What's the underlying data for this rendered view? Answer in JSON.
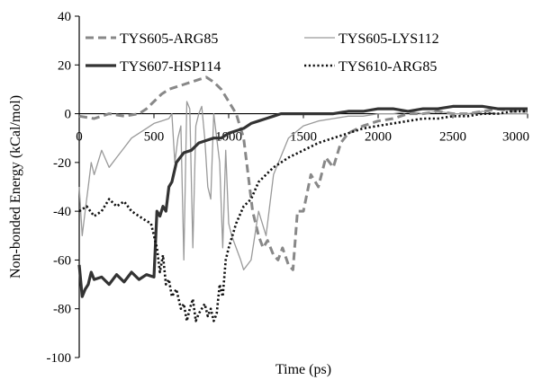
{
  "chart_data": {
    "type": "line",
    "xlabel": "Time (ps)",
    "ylabel": "Non-bonded Energy (kCal/mol)",
    "xlim": [
      0,
      3000
    ],
    "ylim": [
      -100,
      40
    ],
    "xticks": [
      "0",
      "500",
      "1000",
      "1500",
      "2000",
      "2500",
      "3000"
    ],
    "yticks": [
      "40",
      "20",
      "0",
      "-20",
      "-40",
      "-60",
      "-80",
      "-100"
    ],
    "grid": false,
    "legend_placement": "top",
    "series": [
      {
        "name": "TYS605-ARG85",
        "color": "#888888",
        "style": "dashed",
        "x": [
          0,
          100,
          200,
          300,
          400,
          450,
          500,
          550,
          600,
          650,
          700,
          750,
          800,
          850,
          900,
          950,
          1000,
          1050,
          1100,
          1130,
          1160,
          1200,
          1230,
          1260,
          1300,
          1330,
          1360,
          1400,
          1430,
          1460,
          1500,
          1550,
          1600,
          1650,
          1700,
          1750,
          1800,
          1900,
          2000,
          2100,
          2200,
          2300,
          2400,
          2500,
          2600,
          2700,
          2800,
          2900,
          3000
        ],
        "y": [
          -1,
          -2,
          0,
          -1,
          0,
          2,
          5,
          8,
          10,
          11,
          12,
          13,
          14,
          15,
          13,
          10,
          5,
          0,
          -10,
          -25,
          -40,
          -50,
          -55,
          -52,
          -58,
          -60,
          -55,
          -62,
          -64,
          -40,
          -40,
          -25,
          -30,
          -18,
          -22,
          -12,
          -8,
          -5,
          -3,
          -2,
          0,
          0,
          1,
          0,
          0,
          1,
          2,
          1,
          1
        ]
      },
      {
        "name": "TYS605-LYS112",
        "color": "#9a9a9a",
        "style": "solid-thin",
        "x": [
          0,
          20,
          40,
          60,
          80,
          100,
          150,
          200,
          250,
          300,
          350,
          400,
          450,
          500,
          550,
          600,
          620,
          640,
          660,
          680,
          700,
          720,
          740,
          760,
          780,
          800,
          820,
          840,
          860,
          880,
          900,
          920,
          940,
          960,
          980,
          1000,
          1020,
          1050,
          1080,
          1100,
          1150,
          1200,
          1250,
          1300,
          1400,
          1500,
          1600,
          1700,
          1800,
          1900,
          2000,
          2100,
          2200,
          2300,
          2400,
          2500,
          2600,
          2700,
          2800,
          2900,
          3000
        ],
        "y": [
          -30,
          -50,
          -40,
          -30,
          -20,
          -25,
          -15,
          -22,
          -18,
          -14,
          -10,
          -8,
          -6,
          -4,
          -3,
          -2,
          0,
          -20,
          -10,
          -5,
          -60,
          5,
          2,
          -55,
          -5,
          0,
          3,
          -10,
          -30,
          -35,
          0,
          -10,
          -20,
          -55,
          -15,
          -45,
          -50,
          -55,
          -60,
          -64,
          -60,
          -40,
          -50,
          -25,
          -10,
          -5,
          -3,
          -2,
          -1,
          -1,
          0,
          0,
          1,
          0,
          1,
          0,
          0,
          1,
          0,
          0,
          0
        ]
      },
      {
        "name": "TYS607-HSP114",
        "color": "#333333",
        "style": "solid-thick",
        "x": [
          0,
          20,
          40,
          60,
          80,
          100,
          150,
          200,
          250,
          300,
          350,
          400,
          450,
          500,
          520,
          540,
          560,
          580,
          600,
          620,
          650,
          700,
          750,
          800,
          850,
          900,
          950,
          1000,
          1050,
          1100,
          1150,
          1200,
          1250,
          1300,
          1350,
          1400,
          1500,
          1600,
          1700,
          1800,
          1900,
          2000,
          2100,
          2200,
          2300,
          2400,
          2500,
          2600,
          2700,
          2800,
          2900,
          3000
        ],
        "y": [
          -62,
          -75,
          -72,
          -70,
          -65,
          -68,
          -67,
          -70,
          -66,
          -69,
          -65,
          -68,
          -66,
          -67,
          -40,
          -42,
          -38,
          -40,
          -30,
          -28,
          -20,
          -16,
          -15,
          -12,
          -11,
          -10,
          -10,
          -8,
          -7,
          -6,
          -4,
          -3,
          -2,
          -1,
          0,
          0,
          0,
          0,
          0,
          1,
          1,
          2,
          2,
          1,
          2,
          2,
          3,
          3,
          3,
          2,
          2,
          2
        ]
      },
      {
        "name": "TYS610-ARG85",
        "color": "#111111",
        "style": "dotted",
        "x": [
          0,
          50,
          100,
          150,
          200,
          250,
          300,
          350,
          400,
          450,
          480,
          500,
          520,
          540,
          560,
          580,
          600,
          620,
          650,
          680,
          700,
          720,
          740,
          760,
          780,
          800,
          820,
          840,
          860,
          880,
          900,
          920,
          940,
          960,
          980,
          1000,
          1050,
          1100,
          1150,
          1200,
          1250,
          1300,
          1350,
          1400,
          1500,
          1600,
          1700,
          1800,
          1900,
          2000,
          2100,
          2200,
          2300,
          2400,
          2500,
          2600,
          2700,
          2800,
          2900,
          3000
        ],
        "y": [
          -40,
          -38,
          -42,
          -40,
          -35,
          -38,
          -36,
          -40,
          -42,
          -44,
          -45,
          -50,
          -55,
          -65,
          -58,
          -70,
          -68,
          -75,
          -72,
          -80,
          -78,
          -85,
          -80,
          -76,
          -85,
          -82,
          -80,
          -78,
          -83,
          -80,
          -85,
          -82,
          -70,
          -75,
          -60,
          -55,
          -45,
          -38,
          -35,
          -28,
          -25,
          -22,
          -20,
          -18,
          -15,
          -12,
          -10,
          -8,
          -6,
          -5,
          -4,
          -3,
          -2,
          -2,
          -1,
          -1,
          0,
          0,
          1,
          1
        ]
      }
    ]
  }
}
